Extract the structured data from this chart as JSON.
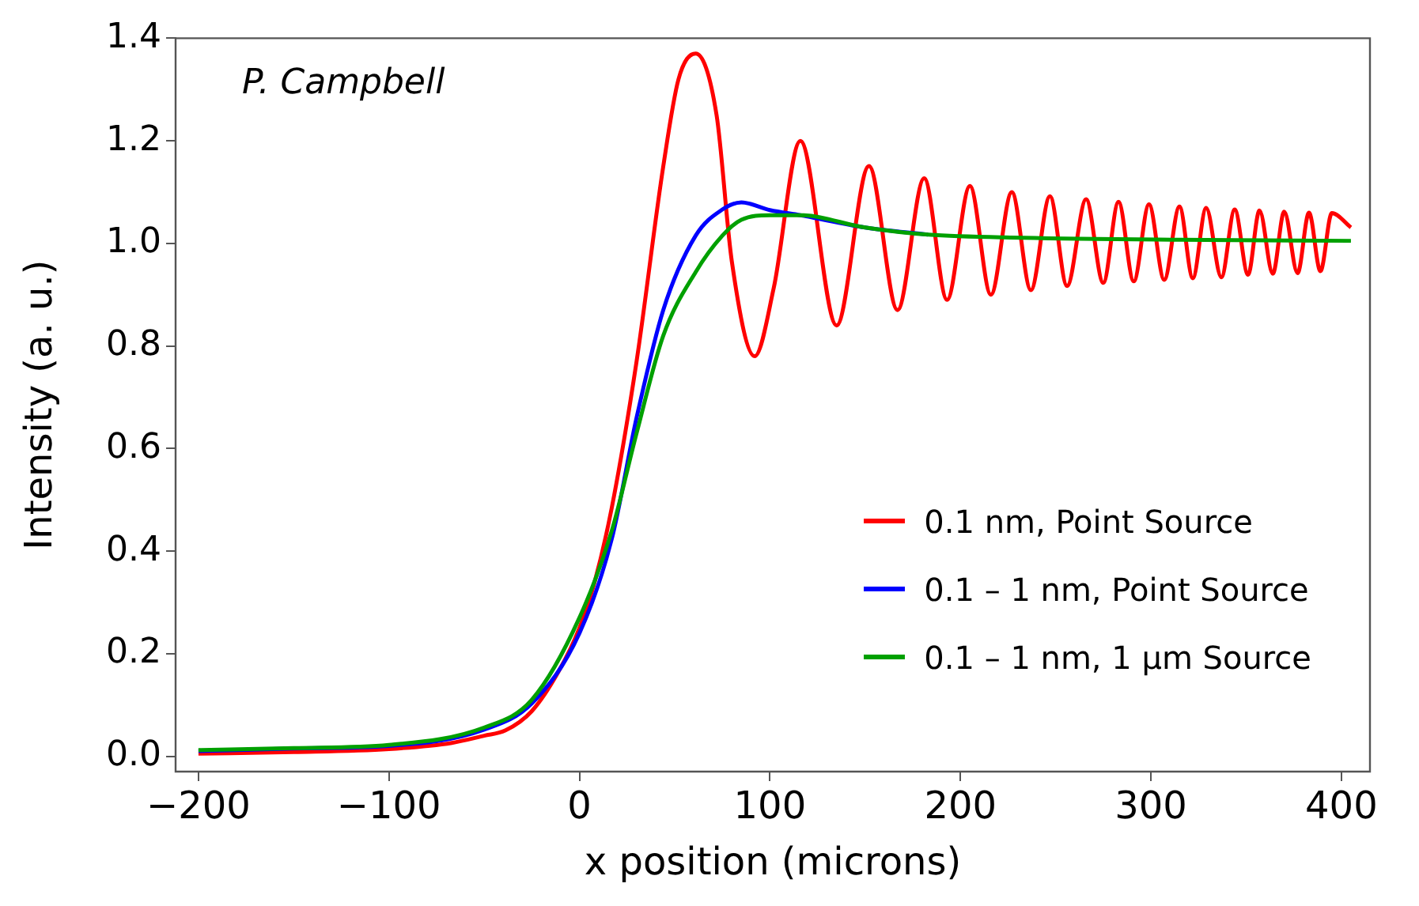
{
  "chart_data": {
    "type": "line",
    "xlabel": "x position (microns)",
    "ylabel": "Intensity (a. u.)",
    "annotations": [
      "P. Campbell"
    ],
    "xlim": [
      -212,
      415
    ],
    "ylim": [
      -0.03,
      1.4
    ],
    "xticks": [
      {
        "value": -200,
        "label": "−200"
      },
      {
        "value": -100,
        "label": "−100"
      },
      0,
      100,
      200,
      300,
      400
    ],
    "yticks": [
      {
        "value": 0,
        "label": "0.0"
      },
      {
        "value": 0.2,
        "label": "0.2"
      },
      {
        "value": 0.4,
        "label": "0.4"
      },
      {
        "value": 0.6,
        "label": "0.6"
      },
      {
        "value": 0.8,
        "label": "0.8"
      },
      {
        "value": 1,
        "label": "1.0"
      },
      {
        "value": 1.2,
        "label": "1.2"
      },
      {
        "value": 1.4,
        "label": "1.4"
      }
    ],
    "grid": false,
    "legend": "right",
    "marker": "none",
    "line_style": "solid",
    "series": [
      {
        "name": "0.1 nm, Point Source",
        "color": "#ff0000",
        "x": [
          -200,
          -150,
          -100,
          -67,
          -50,
          -39,
          -25,
          -11,
          0,
          8,
          17,
          30,
          44,
          52,
          61,
          72,
          80,
          92,
          102,
          116,
          135,
          152,
          167,
          181,
          193,
          205,
          216,
          227,
          237,
          247,
          256,
          266,
          275,
          283,
          291,
          299,
          307,
          315,
          322,
          329,
          337,
          344,
          351,
          357,
          364,
          370,
          377,
          383,
          389,
          395,
          405
        ],
        "values": [
          0.005,
          0.008,
          0.014,
          0.026,
          0.04,
          0.05,
          0.088,
          0.165,
          0.25,
          0.34,
          0.485,
          0.77,
          1.15,
          1.32,
          1.37,
          1.25,
          0.965,
          0.78,
          0.913,
          1.2,
          0.84,
          1.151,
          0.87,
          1.127,
          0.89,
          1.112,
          0.9,
          1.1,
          0.909,
          1.092,
          0.917,
          1.086,
          0.923,
          1.081,
          0.926,
          1.076,
          0.929,
          1.072,
          0.932,
          1.069,
          0.934,
          1.066,
          0.939,
          1.064,
          0.941,
          1.062,
          0.942,
          1.06,
          0.946,
          1.059,
          1.031
        ]
      },
      {
        "name": "0.1 – 1 nm, Point Source",
        "color": "#0000ff",
        "x": [
          -200,
          -150,
          -100,
          -50,
          -25,
          0,
          17,
          30,
          44,
          61,
          75,
          85,
          100,
          116,
          150,
          183
        ],
        "values": [
          0.01,
          0.015,
          0.02,
          0.052,
          0.103,
          0.24,
          0.424,
          0.66,
          0.87,
          1.015,
          1.066,
          1.08,
          1.065,
          1.055,
          1.031,
          1.017
        ]
      },
      {
        "name": "0.1 – 1 nm, 1 μm Source",
        "color": "#00a000",
        "x": [
          -200,
          -150,
          -100,
          -50,
          -25,
          0,
          17,
          30,
          44,
          61,
          75,
          85,
          100,
          116,
          150,
          183,
          233,
          316,
          405
        ],
        "values": [
          0.012,
          0.016,
          0.022,
          0.056,
          0.11,
          0.27,
          0.44,
          0.63,
          0.82,
          0.944,
          1.015,
          1.046,
          1.055,
          1.055,
          1.031,
          1.017,
          1.011,
          1.007,
          1.005
        ]
      }
    ]
  }
}
